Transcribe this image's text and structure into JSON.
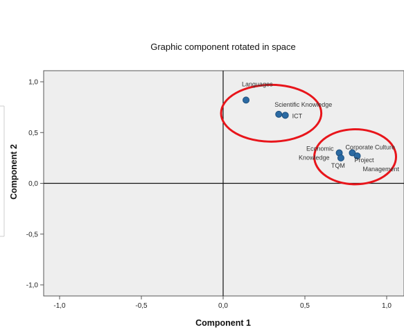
{
  "chart_data": {
    "type": "scatter",
    "title": "Graphic component rotated in space",
    "xlabel": "Component 1",
    "ylabel": "Component 2",
    "xlim": [
      -1.1,
      1.1
    ],
    "ylim": [
      -1.1,
      1.1
    ],
    "x_ticks": [
      "-1,0",
      "-0,5",
      "0,0",
      "0,5",
      "1,0"
    ],
    "y_ticks": [
      "1,0",
      "0,5",
      "0,0",
      "-0,5",
      "-1,0"
    ],
    "grid": false,
    "zero_lines": true,
    "background_color": "#eeeeee",
    "marker_color": "#2b6aa3",
    "highlight_color": "#e8151b",
    "points": [
      {
        "label": "Languages",
        "x": 0.14,
        "y": 0.82
      },
      {
        "label": "Scientific Knowledge",
        "x": 0.34,
        "y": 0.68
      },
      {
        "label": "ICT",
        "x": 0.38,
        "y": 0.67
      },
      {
        "label": "Economic Knowledge",
        "x": 0.71,
        "y": 0.3
      },
      {
        "label": "TQM",
        "x": 0.72,
        "y": 0.25
      },
      {
        "label": "Corporate Culture",
        "x": 0.79,
        "y": 0.3
      },
      {
        "label": "Project Management",
        "x": 0.82,
        "y": 0.27
      }
    ],
    "highlight_groups": [
      {
        "members": [
          "Languages",
          "Scientific Knowledge",
          "ICT"
        ]
      },
      {
        "members": [
          "Economic Knowledge",
          "TQM",
          "Corporate Culture",
          "Project Management"
        ]
      }
    ]
  }
}
